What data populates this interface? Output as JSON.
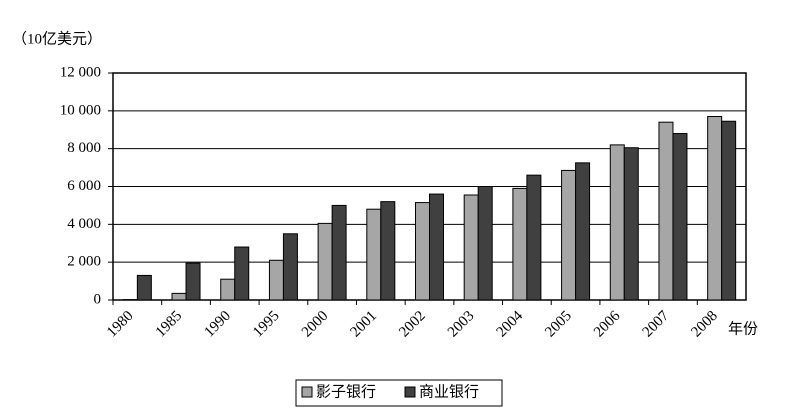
{
  "chart_data": {
    "type": "bar",
    "y_label": "（10亿美元）",
    "x_label": "年份",
    "categories": [
      "1980",
      "1985",
      "1990",
      "1995",
      "2000",
      "2001",
      "2002",
      "2003",
      "2004",
      "2005",
      "2006",
      "2007",
      "2008"
    ],
    "series": [
      {
        "name": "影子银行",
        "color": "#a6a6a6",
        "values": [
          20,
          350,
          1100,
          2100,
          4050,
          4800,
          5150,
          5550,
          5900,
          6850,
          8200,
          9400,
          9700
        ]
      },
      {
        "name": "商业银行",
        "color": "#404040",
        "values": [
          1300,
          1950,
          2800,
          3500,
          5000,
          5200,
          5600,
          6000,
          6600,
          7250,
          8050,
          8800,
          9450
        ]
      }
    ],
    "ylim": [
      0,
      12000
    ],
    "yticks": [
      0,
      {
        "value": 2000,
        "label": "2 000"
      },
      {
        "value": 4000,
        "label": "4 000"
      },
      {
        "value": 6000,
        "label": "6 000"
      },
      {
        "value": 8000,
        "label": "8 000"
      },
      {
        "value": 10000,
        "label": "10 000"
      },
      {
        "value": 12000,
        "label": "12 000"
      }
    ],
    "grid": true,
    "legend": "bottom"
  }
}
